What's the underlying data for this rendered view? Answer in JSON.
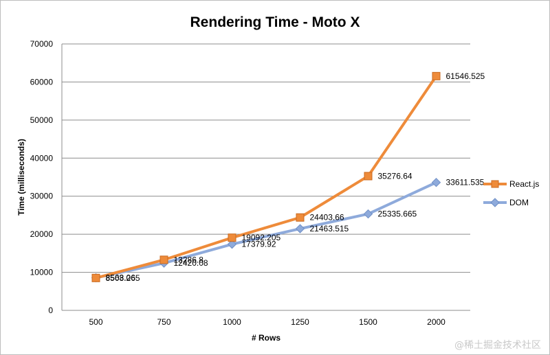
{
  "chart_data": {
    "type": "line",
    "title": "Rendering Time - Moto X",
    "xlabel": "# Rows",
    "ylabel": "Time (milliseconds)",
    "categories": [
      "500",
      "750",
      "1000",
      "1250",
      "1500",
      "2000"
    ],
    "ylim": [
      0,
      70000
    ],
    "yticks": [
      "0",
      "10000",
      "20000",
      "30000",
      "40000",
      "50000",
      "60000",
      "70000"
    ],
    "grid": true,
    "legend_position": "right",
    "series": [
      {
        "name": "React.js",
        "color": "#ee8b3a",
        "marker": "square",
        "values": [
          8508.265,
          13286.8,
          19092.205,
          24403.66,
          35276.64,
          61546.525
        ],
        "labels": [
          "8508.265",
          "13286.8",
          "19092.205",
          "24403.66",
          "35276.64",
          "61546.525"
        ]
      },
      {
        "name": "DOM",
        "color": "#8eaadb",
        "marker": "diamond",
        "values": [
          8563.06,
          12420.08,
          17379.92,
          21463.515,
          25335.665,
          33611.535
        ],
        "labels": [
          "8563.06",
          "12420.08",
          "17379.92",
          "21463.515",
          "25335.665",
          "33611.535"
        ]
      }
    ]
  },
  "watermark": "@稀土掘金技术社区"
}
